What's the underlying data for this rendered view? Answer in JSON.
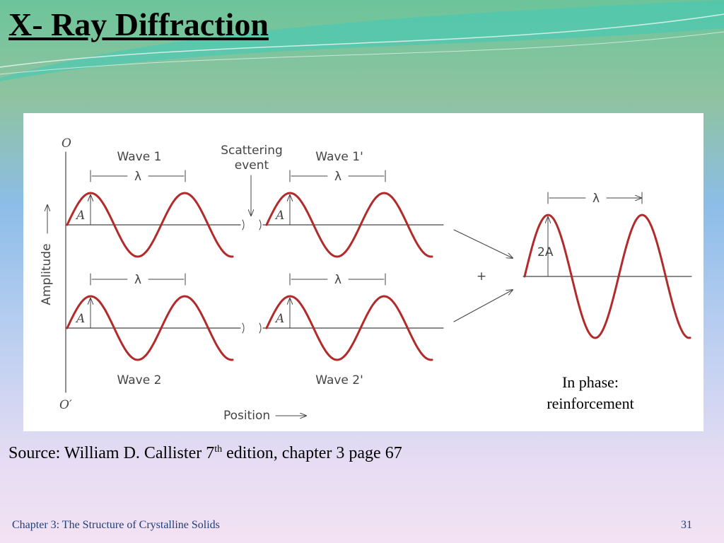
{
  "header": {
    "title": "X- Ray Diffraction"
  },
  "figure": {
    "origin_top": "O",
    "origin_bottom": "O′",
    "y_axis": "Amplitude",
    "x_axis": "Position",
    "scattering": [
      "Scattering",
      "event"
    ],
    "waves": [
      {
        "label": "Wave 1",
        "wavelength": "λ",
        "amplitude": "A"
      },
      {
        "label": "Wave 1'",
        "wavelength": "λ",
        "amplitude": "A"
      },
      {
        "label": "Wave 2",
        "wavelength": "λ",
        "amplitude": "A"
      },
      {
        "label": "Wave 2'",
        "wavelength": "λ",
        "amplitude": "A"
      }
    ],
    "combined": {
      "wavelength": "λ",
      "amplitude": "2A",
      "sum": "+"
    },
    "caption": [
      "In phase:",
      "reinforcement"
    ]
  },
  "source": {
    "text": "Source: William D. Callister 7",
    "sup": "th",
    "rest": " edition, chapter 3 page 67"
  },
  "footer": {
    "chapter": "Chapter 3: The Structure of Crystalline Solids",
    "page": "31"
  }
}
